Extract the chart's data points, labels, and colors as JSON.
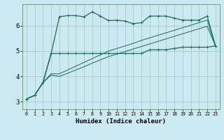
{
  "xlabel": "Humidex (Indice chaleur)",
  "bg_color": "#cce8f0",
  "line_color": "#1a6b5a",
  "grid_color": "#99ccbb",
  "xlim": [
    -0.5,
    23.5
  ],
  "ylim": [
    2.7,
    6.85
  ],
  "xticks": [
    0,
    1,
    2,
    3,
    4,
    5,
    6,
    7,
    8,
    9,
    10,
    11,
    12,
    13,
    14,
    15,
    16,
    17,
    18,
    19,
    20,
    21,
    22,
    23
  ],
  "yticks": [
    3,
    4,
    5,
    6
  ],
  "line1_x": [
    0,
    1,
    2,
    3,
    4,
    5,
    6,
    7,
    8,
    9,
    10,
    11,
    12,
    13,
    14,
    15,
    16,
    17,
    18,
    19,
    20,
    21,
    22,
    23
  ],
  "line1_y": [
    3.1,
    3.25,
    3.75,
    4.9,
    6.35,
    6.4,
    6.4,
    6.35,
    6.55,
    6.38,
    6.2,
    6.22,
    6.18,
    6.08,
    6.12,
    6.38,
    6.38,
    6.38,
    6.3,
    6.22,
    6.22,
    6.22,
    6.38,
    5.2
  ],
  "line2_x": [
    0,
    1,
    2,
    3,
    4,
    5,
    6,
    7,
    8,
    9,
    10,
    11,
    12,
    13,
    14,
    15,
    16,
    17,
    18,
    19,
    20,
    21,
    22,
    23
  ],
  "line2_y": [
    3.1,
    3.25,
    3.75,
    4.9,
    4.9,
    4.9,
    4.9,
    4.9,
    4.9,
    4.9,
    4.9,
    4.9,
    4.9,
    4.9,
    4.9,
    5.05,
    5.05,
    5.05,
    5.1,
    5.15,
    5.15,
    5.15,
    5.15,
    5.2
  ],
  "line3_x": [
    0,
    1,
    2,
    3,
    4,
    5,
    6,
    7,
    8,
    9,
    10,
    11,
    12,
    13,
    14,
    15,
    16,
    17,
    18,
    19,
    20,
    21,
    22,
    23
  ],
  "line3_y": [
    3.1,
    3.25,
    3.75,
    4.1,
    4.1,
    4.25,
    4.4,
    4.55,
    4.7,
    4.85,
    5.0,
    5.1,
    5.2,
    5.3,
    5.42,
    5.52,
    5.62,
    5.72,
    5.82,
    5.92,
    6.02,
    6.12,
    6.22,
    5.2
  ],
  "line4_x": [
    0,
    1,
    2,
    3,
    4,
    5,
    6,
    7,
    8,
    9,
    10,
    11,
    12,
    13,
    14,
    15,
    16,
    17,
    18,
    19,
    20,
    21,
    22,
    23
  ],
  "line4_y": [
    3.1,
    3.25,
    3.75,
    4.05,
    4.0,
    4.12,
    4.25,
    4.38,
    4.52,
    4.65,
    4.78,
    4.88,
    4.98,
    5.08,
    5.18,
    5.28,
    5.38,
    5.48,
    5.58,
    5.68,
    5.78,
    5.88,
    5.98,
    5.2
  ]
}
